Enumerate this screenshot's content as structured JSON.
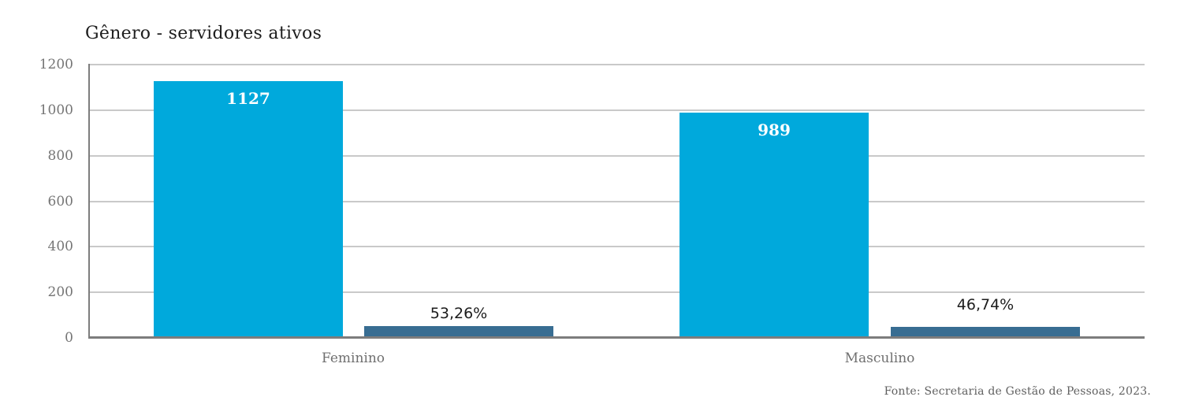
{
  "chart_data": {
    "type": "bar",
    "title": "Gênero - servidores ativos",
    "categories": [
      "Feminino",
      "Masculino"
    ],
    "series": [
      {
        "id": "count",
        "values": [
          1127,
          989
        ],
        "data_labels": [
          "1127",
          "989"
        ],
        "color": "#00a9dc",
        "label_color": "#ffffff",
        "label_position": "inside-top"
      },
      {
        "id": "percent",
        "values": [
          53.26,
          46.74
        ],
        "data_labels": [
          "53,26%",
          "46,74%"
        ],
        "color": "#386d92",
        "label_color": "#1c1c1c",
        "label_position": "above"
      }
    ],
    "xlabel": "",
    "ylabel": "",
    "ylim": [
      0,
      1200
    ],
    "yticks": [
      0,
      200,
      400,
      600,
      800,
      1000,
      1200
    ],
    "ytick_labels": [
      "0",
      "200",
      "400",
      "600",
      "800",
      "1000",
      "1200"
    ],
    "grid": true,
    "legend_position": "none"
  },
  "source_note": "Fonte: Secretaria de Gestão de Pessoas, 2023.",
  "colors": {
    "bar_count": "#00a9dc",
    "bar_percent": "#386d92",
    "gridline": "#c9c9c9",
    "axis_line": "#7d7d7d",
    "title_text": "#1d1d1d",
    "tick_text": "#757575",
    "category_text": "#6f6f6f",
    "source_text": "#606060",
    "background": "#ffffff"
  }
}
